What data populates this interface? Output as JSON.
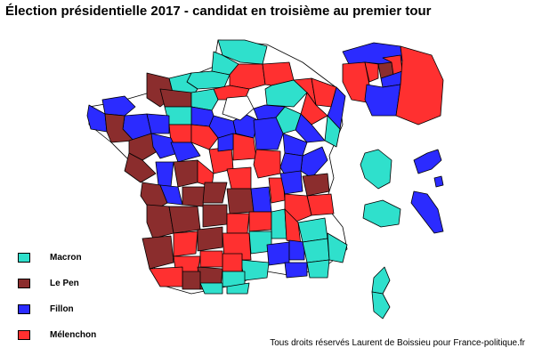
{
  "title": "Élection présidentielle 2017 - candidat en troisième au premier tour",
  "colors": {
    "macron": "#2fe0cc",
    "lepen": "#8b2d2d",
    "fillon": "#2b2bff",
    "melenchon": "#ff3030"
  },
  "legend": [
    {
      "label": "Macron",
      "color": "#2fe0cc"
    },
    {
      "label": "Le Pen",
      "color": "#8b2d2d"
    },
    {
      "label": "Fillon",
      "color": "#2b2bff"
    },
    {
      "label": "Mélenchon",
      "color": "#ff3030"
    }
  ],
  "credit": "Tous droits réservés Laurent de Boissieu pour France-politique.fr"
}
